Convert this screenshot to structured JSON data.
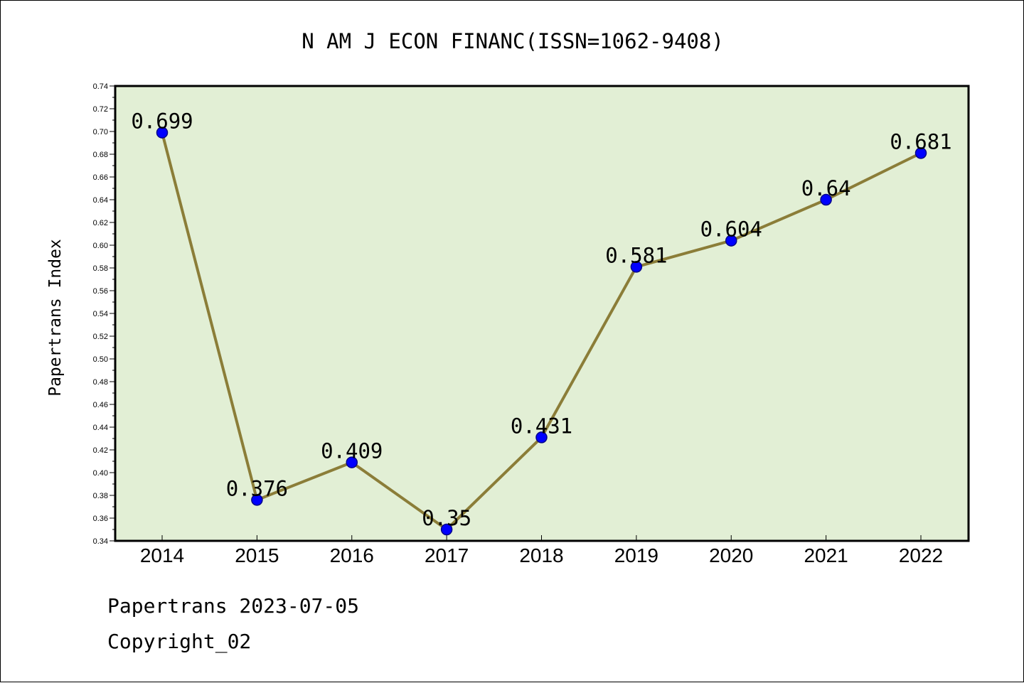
{
  "chart_data": {
    "type": "line",
    "title": "N AM J ECON FINANC(ISSN=1062-9408)",
    "xlabel": "",
    "ylabel": "Papertrans Index",
    "categories": [
      "2014",
      "2015",
      "2016",
      "2017",
      "2018",
      "2019",
      "2020",
      "2021",
      "2022"
    ],
    "series": [
      {
        "values": [
          0.699,
          0.376,
          0.409,
          0.35,
          0.431,
          0.581,
          0.604,
          0.64,
          0.681
        ],
        "labels": [
          "0.699",
          "0.376",
          "0.409",
          "0.35",
          "0.431",
          "0.581",
          "0.604",
          "0.64",
          "0.681"
        ]
      }
    ],
    "ylim": [
      0.34,
      0.74
    ],
    "yticks": [
      "0.34",
      "0.36",
      "0.38",
      "0.40",
      "0.42",
      "0.44",
      "0.46",
      "0.48",
      "0.50",
      "0.52",
      "0.54",
      "0.56",
      "0.58",
      "0.60",
      "0.62",
      "0.64",
      "0.66",
      "0.68",
      "0.70",
      "0.72",
      "0.74"
    ],
    "grid": false,
    "colors": {
      "plot_background": "#e2efd5",
      "line": "#8b7d38",
      "marker_fill": "#0000ff",
      "marker_edge": "#00008b",
      "axes": "#000000"
    }
  },
  "footer": {
    "source": "Papertrans 2023-07-05",
    "copyright": "Copyright_02"
  }
}
